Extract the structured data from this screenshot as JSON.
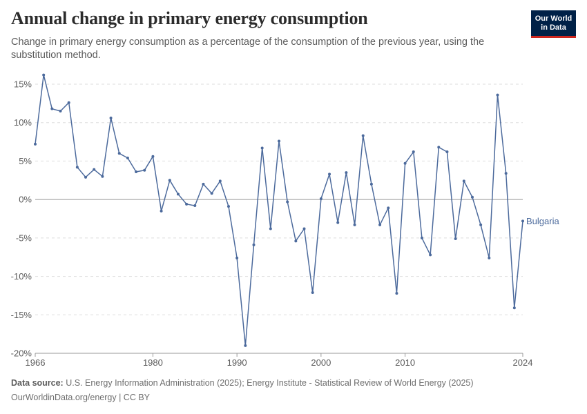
{
  "header": {
    "title": "Annual change in primary energy consumption",
    "subtitle": "Change in primary energy consumption as a percentage of the consumption of the previous year, using the substitution method.",
    "logo_line1": "Our World",
    "logo_line2": "in Data"
  },
  "footer": {
    "source_label": "Data source:",
    "source_text": "U.S. Energy Information Administration (2025); Energy Institute - Statistical Review of World Energy (2025)",
    "credit": "OurWorldinData.org/energy | CC BY"
  },
  "colors": {
    "series": "#4c6a9c",
    "grid": "#dddddd",
    "zero": "#9a9a9a",
    "text": "#5b5b5b",
    "logo_bg": "#002147",
    "logo_accent": "#ce261e"
  },
  "chart_data": {
    "type": "line",
    "xlim": [
      1966,
      2024
    ],
    "ylim": [
      -20,
      15
    ],
    "ytick_values": [
      -20,
      -15,
      -10,
      -5,
      0,
      5,
      10,
      15
    ],
    "ytick_labels": [
      "-20%",
      "-15%",
      "-10%",
      "-5%",
      "0%",
      "5%",
      "10%",
      "15%"
    ],
    "xtick_values": [
      1966,
      1980,
      1990,
      2000,
      2010,
      2024
    ],
    "xtick_labels": [
      "1966",
      "1980",
      "1990",
      "2000",
      "2010",
      "2024"
    ],
    "grid": "horizontal dashed",
    "series": [
      {
        "name": "Bulgaria",
        "x": [
          1966,
          1967,
          1968,
          1969,
          1970,
          1971,
          1972,
          1973,
          1974,
          1975,
          1976,
          1977,
          1978,
          1979,
          1980,
          1981,
          1982,
          1983,
          1984,
          1985,
          1986,
          1987,
          1988,
          1989,
          1990,
          1991,
          1992,
          1993,
          1994,
          1995,
          1996,
          1997,
          1998,
          1999,
          2000,
          2001,
          2002,
          2003,
          2004,
          2005,
          2006,
          2007,
          2008,
          2009,
          2010,
          2011,
          2012,
          2013,
          2014,
          2015,
          2016,
          2017,
          2018,
          2019,
          2020,
          2021,
          2022,
          2023,
          2024
        ],
        "y": [
          7.2,
          16.2,
          11.8,
          11.5,
          12.6,
          4.2,
          2.9,
          3.9,
          3.0,
          10.6,
          6.0,
          5.4,
          3.6,
          3.8,
          5.6,
          -1.5,
          2.5,
          0.7,
          -0.6,
          -0.8,
          2.0,
          0.8,
          2.4,
          -0.9,
          -7.6,
          -19.0,
          -5.9,
          6.7,
          -3.8,
          7.6,
          -0.3,
          -5.4,
          -3.8,
          -12.1,
          0.1,
          3.3,
          -3.0,
          3.5,
          -3.3,
          8.3,
          2.0,
          -3.3,
          -1.1,
          -12.2,
          4.7,
          6.2,
          -5.0,
          -7.2,
          6.8,
          6.2,
          -5.1,
          2.4,
          0.3,
          -3.3,
          -7.6,
          13.6,
          3.4,
          -14.1,
          -2.8
        ]
      }
    ]
  }
}
